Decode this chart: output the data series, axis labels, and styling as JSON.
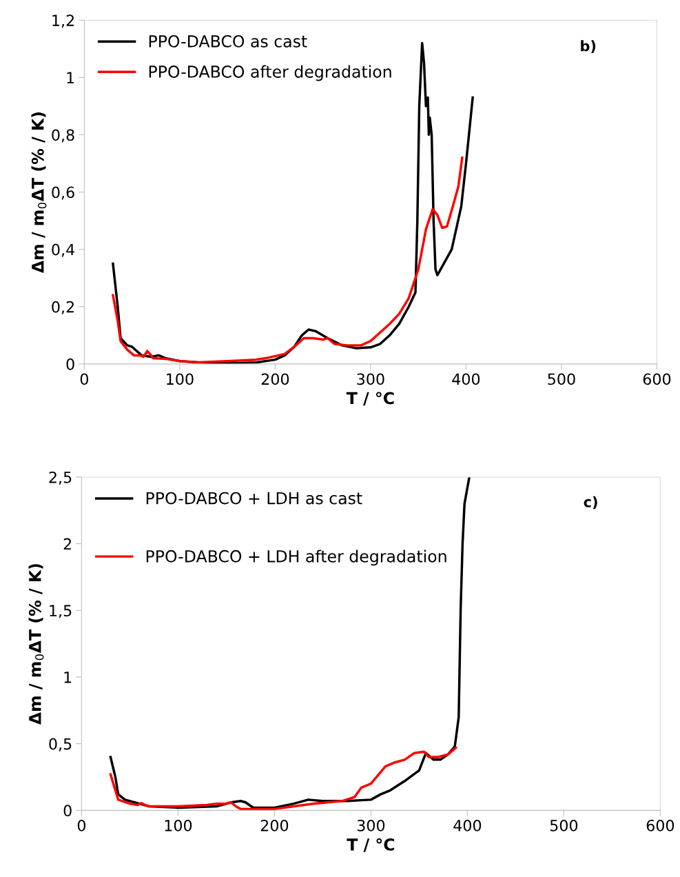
{
  "chart_data": [
    {
      "type": "line",
      "xlabel": "T / °C",
      "ylabel": "Δm / m$_{0}$ΔT (% / K)",
      "annotations": [
        "b)"
      ],
      "legend": "top left",
      "grid": false,
      "xlim": [
        0,
        600
      ],
      "xticks": [
        0,
        100,
        200,
        300,
        400,
        500,
        600
      ],
      "ylim": [
        0,
        1.2
      ],
      "yticks": [
        0,
        {
          "value": 0.2,
          "label": "0,2"
        },
        {
          "value": 0.4,
          "label": "0,4"
        },
        {
          "value": 0.6,
          "label": "0,6"
        },
        {
          "value": 0.8,
          "label": "0,8"
        },
        {
          "value": 1,
          "label": "1"
        },
        {
          "value": 1.2,
          "label": "1,2"
        }
      ],
      "series": [
        {
          "name": "PPO-DABCO as cast",
          "color": "#000000",
          "x": [
            30,
            35,
            38,
            45,
            50,
            55,
            60,
            70,
            78,
            85,
            100,
            120,
            150,
            180,
            200,
            210,
            220,
            228,
            235,
            242,
            255,
            270,
            285,
            300,
            310,
            320,
            330,
            340,
            347,
            349,
            351,
            354,
            356,
            358,
            360,
            361,
            362,
            364,
            366,
            368,
            370,
            375,
            385,
            395,
            400,
            407
          ],
          "values": [
            0.35,
            0.2,
            0.09,
            0.065,
            0.06,
            0.045,
            0.03,
            0.025,
            0.03,
            0.02,
            0.01,
            0.005,
            0.002,
            0.005,
            0.015,
            0.03,
            0.06,
            0.1,
            0.12,
            0.115,
            0.09,
            0.065,
            0.055,
            0.058,
            0.07,
            0.1,
            0.14,
            0.2,
            0.25,
            0.5,
            0.9,
            1.12,
            1.05,
            0.9,
            0.93,
            0.8,
            0.86,
            0.8,
            0.5,
            0.33,
            0.31,
            0.34,
            0.4,
            0.55,
            0.7,
            0.93
          ]
        },
        {
          "name": "PPO-DABCO after degradation",
          "color": "#ff0000",
          "x": [
            30,
            35,
            38,
            45,
            52,
            58,
            62,
            66,
            70,
            72,
            85,
            100,
            120,
            150,
            180,
            190,
            210,
            220,
            230,
            240,
            250,
            255,
            262,
            275,
            290,
            300,
            310,
            320,
            330,
            340,
            350,
            358,
            365,
            370,
            375,
            380,
            387,
            392,
            396
          ],
          "values": [
            0.24,
            0.15,
            0.08,
            0.05,
            0.03,
            0.03,
            0.025,
            0.045,
            0.03,
            0.02,
            0.018,
            0.01,
            0.006,
            0.01,
            0.015,
            0.02,
            0.035,
            0.06,
            0.09,
            0.09,
            0.085,
            0.09,
            0.07,
            0.065,
            0.065,
            0.08,
            0.11,
            0.14,
            0.175,
            0.23,
            0.33,
            0.47,
            0.54,
            0.52,
            0.475,
            0.48,
            0.56,
            0.62,
            0.72
          ]
        }
      ]
    },
    {
      "type": "line",
      "xlabel": "T / °C",
      "ylabel": "Δm / m$_{0}$ΔT (% / K)",
      "annotations": [
        "c)"
      ],
      "legend": "top left",
      "grid": false,
      "xlim": [
        0,
        600
      ],
      "xticks": [
        0,
        100,
        200,
        300,
        400,
        500,
        600
      ],
      "ylim": [
        0,
        2.5
      ],
      "yticks": [
        0,
        {
          "value": 0.5,
          "label": "0,5"
        },
        {
          "value": 1,
          "label": "1"
        },
        {
          "value": 1.5,
          "label": "1,5"
        },
        {
          "value": 2,
          "label": "2"
        },
        {
          "value": 2.5,
          "label": "2,5"
        }
      ],
      "series": [
        {
          "name": "PPO-DABCO + LDH as cast",
          "color": "#000000",
          "x": [
            30,
            35,
            38,
            45,
            60,
            70,
            100,
            140,
            155,
            165,
            170,
            178,
            200,
            220,
            235,
            250,
            275,
            300,
            310,
            320,
            335,
            350,
            357,
            365,
            372,
            380,
            387,
            391,
            393,
            395,
            397,
            402
          ],
          "values": [
            0.4,
            0.25,
            0.12,
            0.08,
            0.05,
            0.03,
            0.02,
            0.03,
            0.06,
            0.07,
            0.06,
            0.02,
            0.02,
            0.05,
            0.08,
            0.07,
            0.07,
            0.08,
            0.12,
            0.15,
            0.22,
            0.3,
            0.43,
            0.38,
            0.38,
            0.42,
            0.48,
            0.7,
            1.5,
            2.0,
            2.3,
            2.5
          ]
        },
        {
          "name": "PPO-DABCO + LDH after degradation",
          "color": "#ff0000",
          "x": [
            30,
            35,
            38,
            50,
            58,
            62,
            66,
            70,
            100,
            130,
            140,
            150,
            155,
            160,
            165,
            200,
            240,
            270,
            283,
            290,
            300,
            315,
            325,
            335,
            345,
            355,
            360,
            370,
            380,
            388
          ],
          "values": [
            0.27,
            0.15,
            0.08,
            0.05,
            0.04,
            0.055,
            0.04,
            0.03,
            0.03,
            0.04,
            0.05,
            0.05,
            0.06,
            0.03,
            0.01,
            0.01,
            0.05,
            0.07,
            0.1,
            0.17,
            0.2,
            0.33,
            0.36,
            0.38,
            0.43,
            0.44,
            0.4,
            0.4,
            0.42,
            0.47
          ]
        }
      ]
    }
  ]
}
